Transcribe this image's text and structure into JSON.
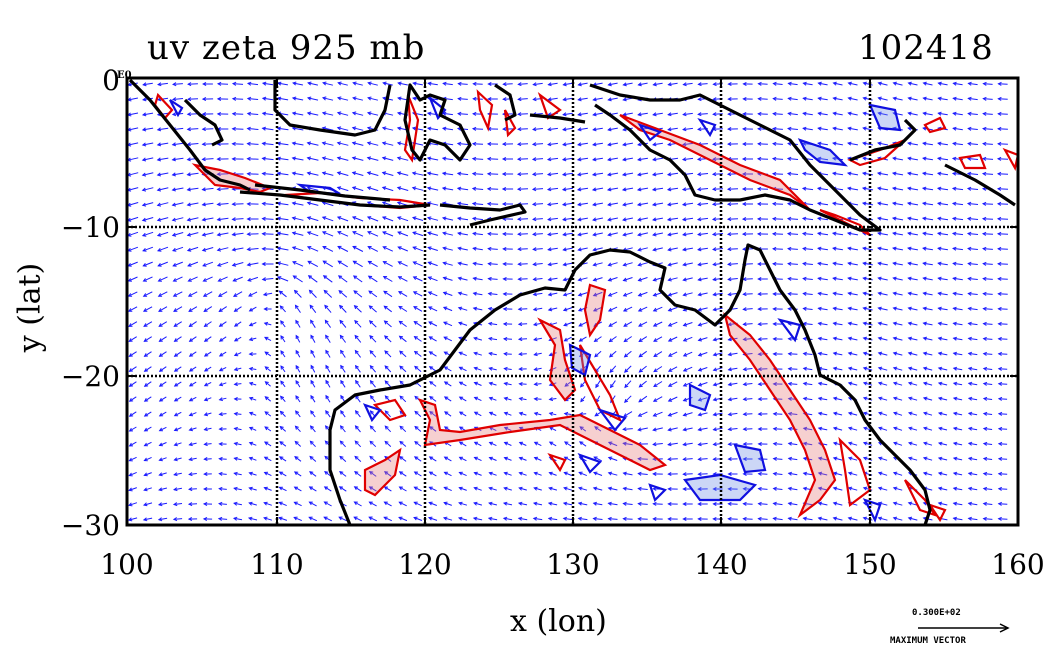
{
  "title": {
    "left": "uv zeta 925 mb",
    "right": "102418"
  },
  "axes": {
    "xlabel": "x (lon)",
    "ylabel": "y (lat)",
    "xticks": [
      "100",
      "110",
      "120",
      "130",
      "140",
      "150",
      "160"
    ],
    "yticks": [
      "0",
      "−10",
      "−20",
      "−30"
    ],
    "corner_label": "E0"
  },
  "legend": {
    "value": "0.300E+02",
    "caption": "MAXIMUM VECTOR"
  },
  "colors": {
    "positive": "#e00000",
    "negative": "#1010e0",
    "coast": "#000000",
    "vectors": "#1a1aff"
  },
  "chart_data": {
    "type": "map",
    "title": "uv zeta 925 mb",
    "subtitle": "102418",
    "xlabel": "x (lon)",
    "ylabel": "y (lat)",
    "xlim": [
      100,
      160
    ],
    "ylim": [
      -30,
      0
    ],
    "xticks": [
      100,
      110,
      120,
      130,
      140,
      150,
      160
    ],
    "yticks": [
      0,
      -10,
      -20,
      -30
    ],
    "grid": true,
    "layers": [
      "wind vectors (u,v)",
      "vorticity contours (positive red, negative blue)",
      "coastlines"
    ]
  }
}
